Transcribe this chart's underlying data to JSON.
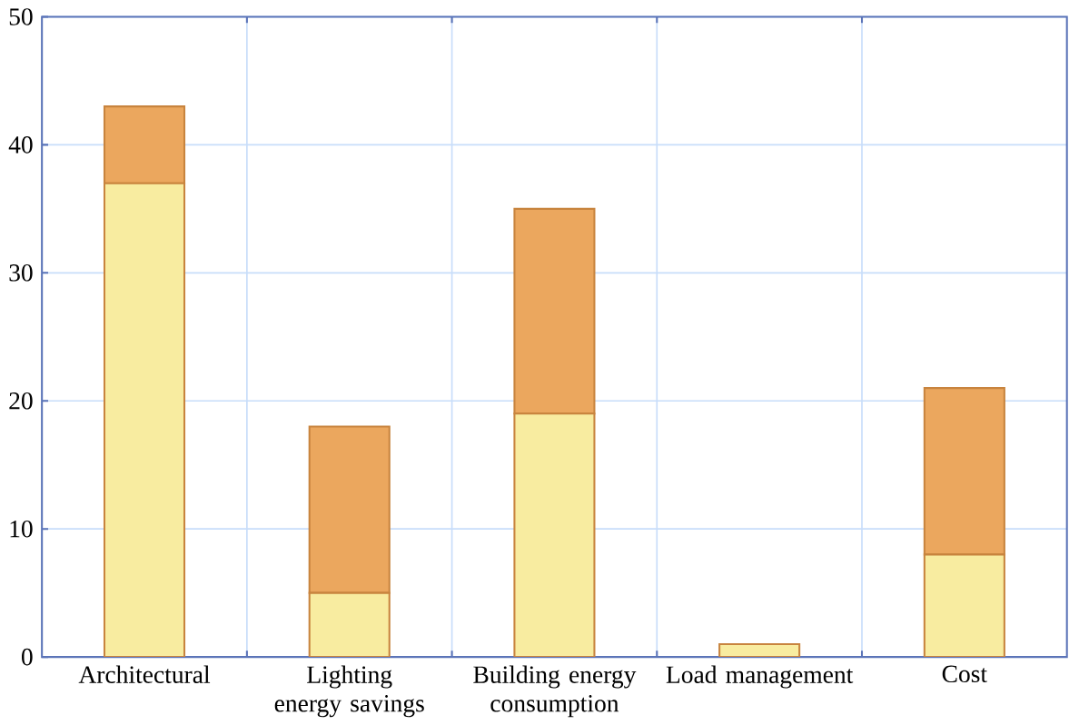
{
  "chart_data": {
    "type": "bar",
    "stacked": true,
    "categories": [
      "Architectural",
      "Lighting energy savings",
      "Building energy consumption",
      "Load management",
      "Cost"
    ],
    "series": [
      {
        "color": "#f8eca0",
        "values": [
          37,
          5,
          19,
          1,
          8
        ]
      },
      {
        "color": "#eba75e",
        "values": [
          6,
          13,
          16,
          null,
          13
        ]
      }
    ],
    "ylim": [
      0,
      50
    ],
    "yticks": [
      0,
      10,
      20,
      30,
      40,
      50
    ],
    "grid": true
  }
}
